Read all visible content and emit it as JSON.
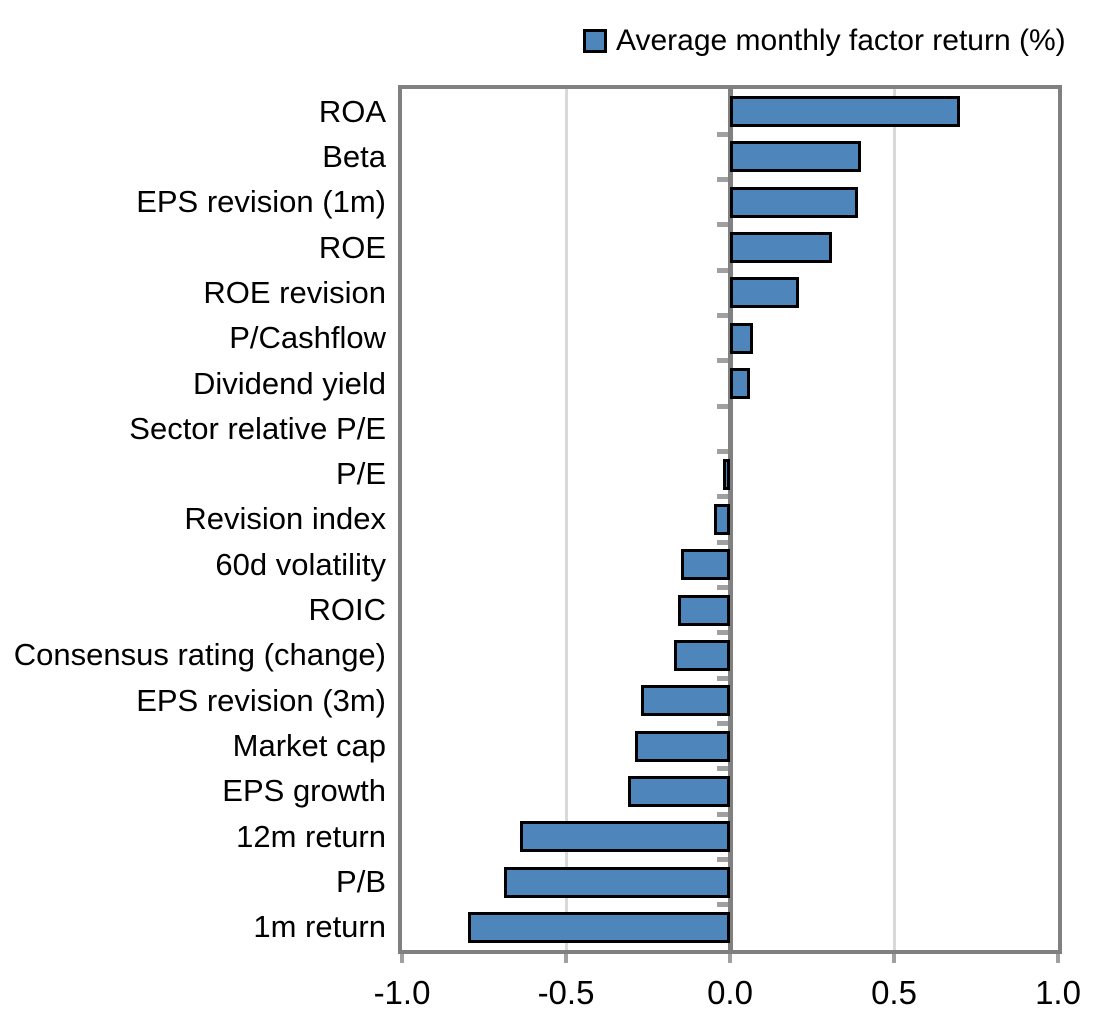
{
  "page": {
    "background": "#FFFFFF"
  },
  "legend": {
    "label": "Average monthly factor return (%)",
    "swatch_color": "#4E86BC",
    "swatch_border": "#000000"
  },
  "chart_data": {
    "type": "bar",
    "orientation": "horizontal",
    "title": "",
    "series_name": "Average monthly factor return (%)",
    "categories": [
      "ROA",
      "Beta",
      "EPS revision (1m)",
      "ROE",
      "ROE revision",
      "P/Cashflow",
      "Dividend yield",
      "Sector relative P/E",
      "P/E",
      "Revision index",
      "60d volatility",
      "ROIC",
      "Consensus rating (change)",
      "EPS revision (3m)",
      "Market cap",
      "EPS growth",
      "12m return",
      "P/B",
      "1m return"
    ],
    "values": [
      0.7,
      0.4,
      0.39,
      0.31,
      0.21,
      0.07,
      0.06,
      0.0,
      -0.02,
      -0.05,
      -0.15,
      -0.16,
      -0.17,
      -0.27,
      -0.29,
      -0.31,
      -0.64,
      -0.69,
      -0.8
    ],
    "xlabel": "",
    "ylabel": "",
    "xlim": [
      -1.0,
      1.0
    ],
    "xticks": [
      -1.0,
      -0.5,
      0.0,
      0.5,
      1.0
    ],
    "xtick_labels": [
      "-1.0",
      "-0.5",
      "0.0",
      "0.5",
      "1.0"
    ],
    "gridlines_at": [
      -0.5,
      0.5
    ],
    "grid": true,
    "legend_position": "top-right",
    "colors": {
      "bar_fill": "#4E86BC",
      "bar_border": "#000000",
      "axis": "#808080",
      "gridline": "#D9D9D9",
      "tick": "#A0A0A0",
      "text": "#000000",
      "background": "#FFFFFF"
    }
  }
}
